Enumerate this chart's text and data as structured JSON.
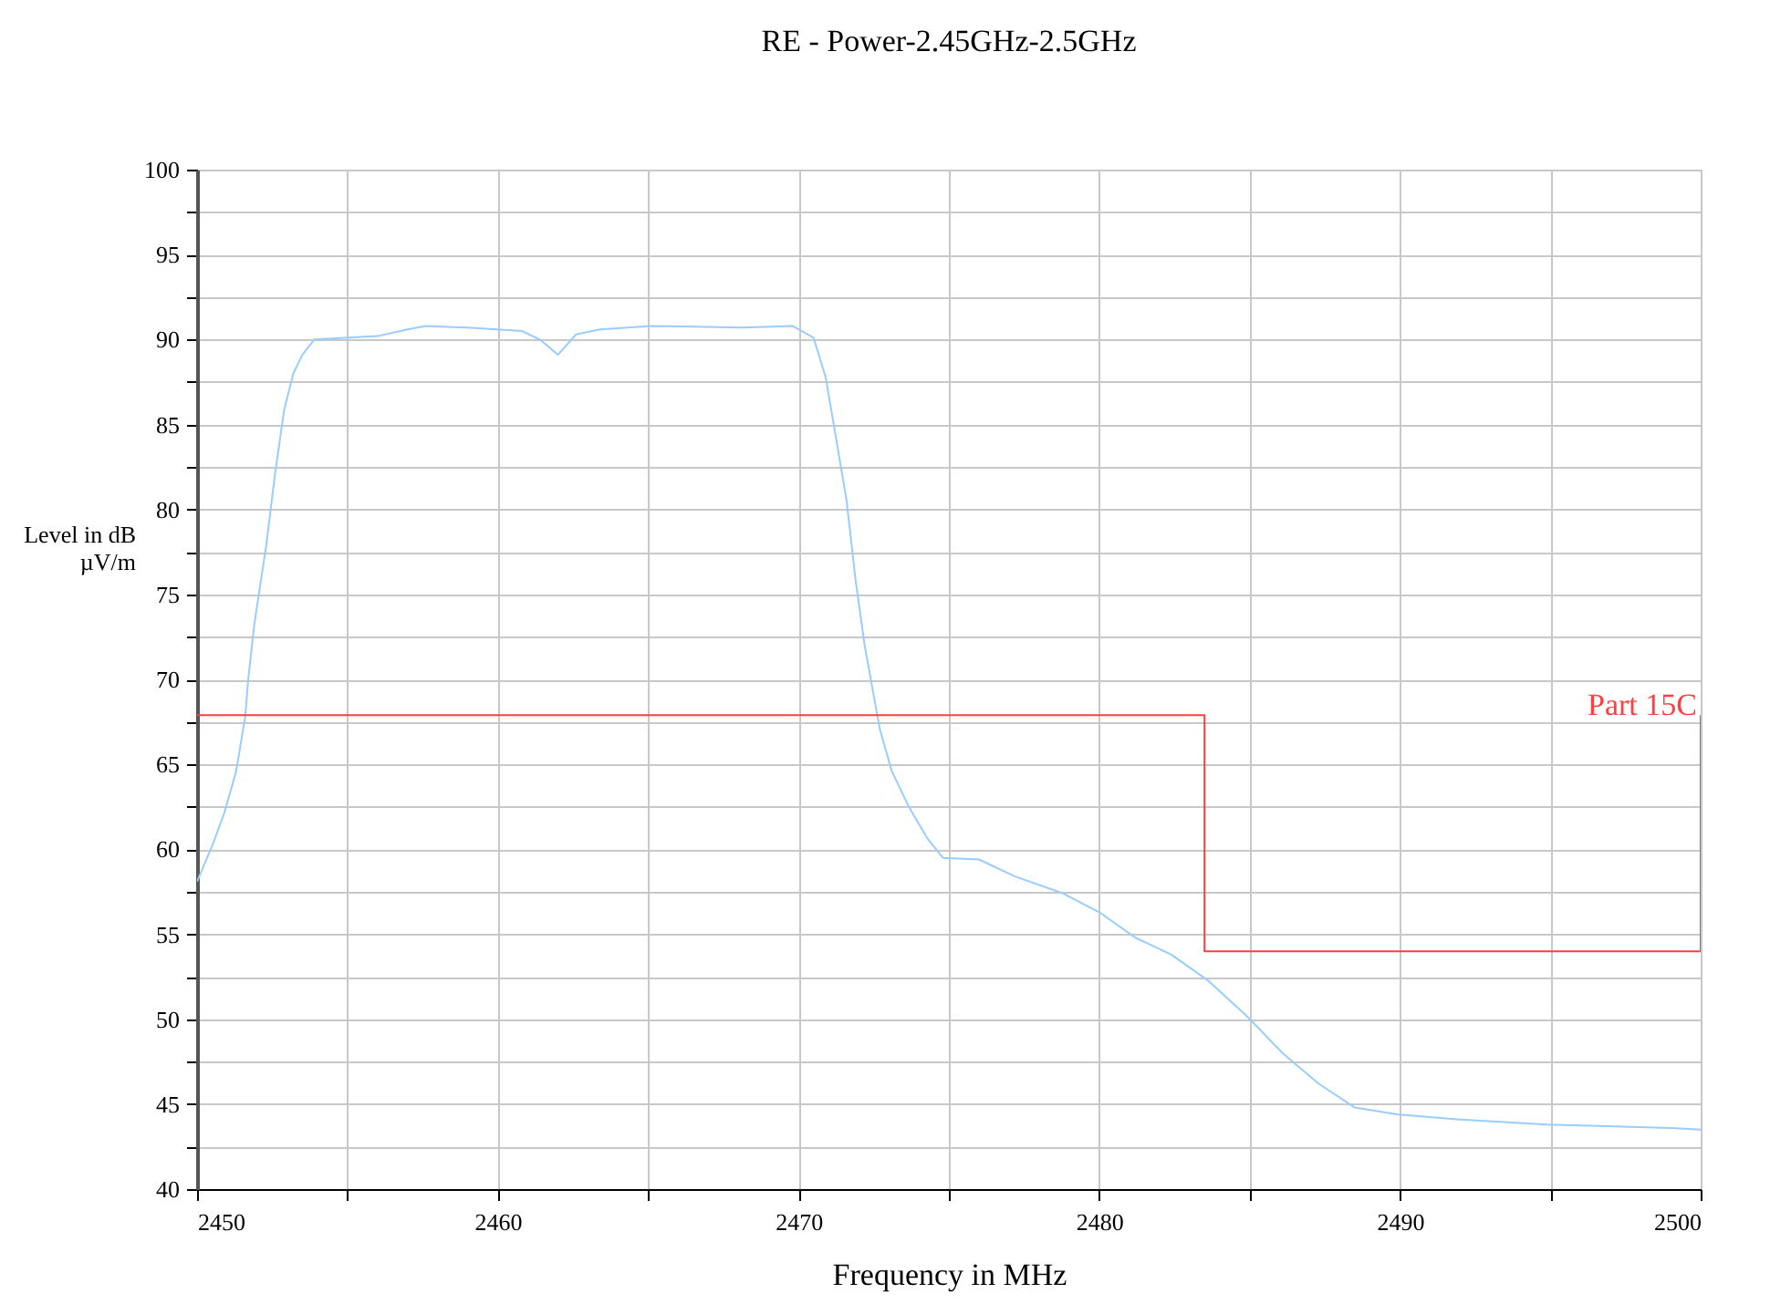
{
  "chart_data": {
    "type": "line",
    "title": "RE - Power-2.45GHz-2.5GHz",
    "xlabel": "Frequency in MHz",
    "ylabel": "Level in dB µV/m",
    "xlim": [
      2450,
      2500
    ],
    "xticks": [
      2450,
      {
        "value": 2455,
        "label": null
      },
      2460,
      {
        "value": 2465,
        "label": null
      },
      2470,
      {
        "value": 2475,
        "label": null
      },
      2480,
      {
        "value": 2485,
        "label": null
      },
      2490,
      {
        "value": 2495,
        "label": null
      },
      2500
    ],
    "ylim": [
      40,
      100
    ],
    "yticks": [
      40,
      {
        "value": 42.5,
        "label": null
      },
      45,
      {
        "value": 47.5,
        "label": null
      },
      50,
      {
        "value": 52.5,
        "label": null
      },
      55,
      {
        "value": 57.5,
        "label": null
      },
      60,
      {
        "value": 62.5,
        "label": null
      },
      65,
      {
        "value": 67.5,
        "label": null
      },
      70,
      {
        "value": 72.5,
        "label": null
      },
      75,
      {
        "value": 77.5,
        "label": null
      },
      80,
      {
        "value": 82.5,
        "label": null
      },
      85,
      {
        "value": 87.5,
        "label": null
      },
      90,
      {
        "value": 92.5,
        "label": null
      },
      95,
      {
        "value": 97.5,
        "label": null
      },
      100
    ],
    "grid": true,
    "series": [
      {
        "color": "#99ccff",
        "x": [
          2450,
          2450.5,
          2450.9,
          2451.3,
          2451.6,
          2451.7,
          2451.9,
          2452.3,
          2452.6,
          2452.9,
          2453.2,
          2453.5,
          2453.9,
          2454.9,
          2456.0,
          2457.0,
          2457.6,
          2459.0,
          2460.8,
          2461.4,
          2462.0,
          2462.6,
          2463.4,
          2465.1,
          2468.1,
          2469.8,
          2470.5,
          2470.9,
          2471.2,
          2471.6,
          2471.9,
          2472.2,
          2472.7,
          2473.1,
          2473.7,
          2474.3,
          2474.8,
          2476.0,
          2477.2,
          2478.8,
          2480.0,
          2481.2,
          2482.4,
          2483.6,
          2484.9,
          2486.1,
          2487.3,
          2488.5,
          2489.9,
          2491.9,
          2494.9,
          2499.0,
          2500
        ],
        "values": [
          58.1,
          60.2,
          62.1,
          64.6,
          67.8,
          70,
          73.2,
          77.9,
          82.2,
          85.9,
          88.0,
          89.1,
          90.0,
          90.1,
          90.2,
          90.6,
          90.8,
          90.7,
          90.5,
          90.0,
          89.1,
          90.3,
          90.6,
          90.8,
          90.7,
          90.8,
          90.1,
          87.8,
          84.7,
          80.5,
          75.8,
          72.0,
          67.1,
          64.6,
          62.4,
          60.6,
          59.5,
          59.4,
          58.4,
          57.4,
          56.3,
          54.8,
          53.8,
          52.3,
          50.2,
          48.0,
          46.2,
          44.8,
          44.4,
          44.1,
          43.8,
          43.6,
          43.5
        ]
      },
      {
        "name": "Part 15C",
        "color": "#ff4040",
        "x": [
          2450,
          2483.5,
          2483.5,
          2500,
          2500
        ],
        "values": [
          67.9,
          67.9,
          54,
          54,
          67.9
        ]
      }
    ]
  }
}
